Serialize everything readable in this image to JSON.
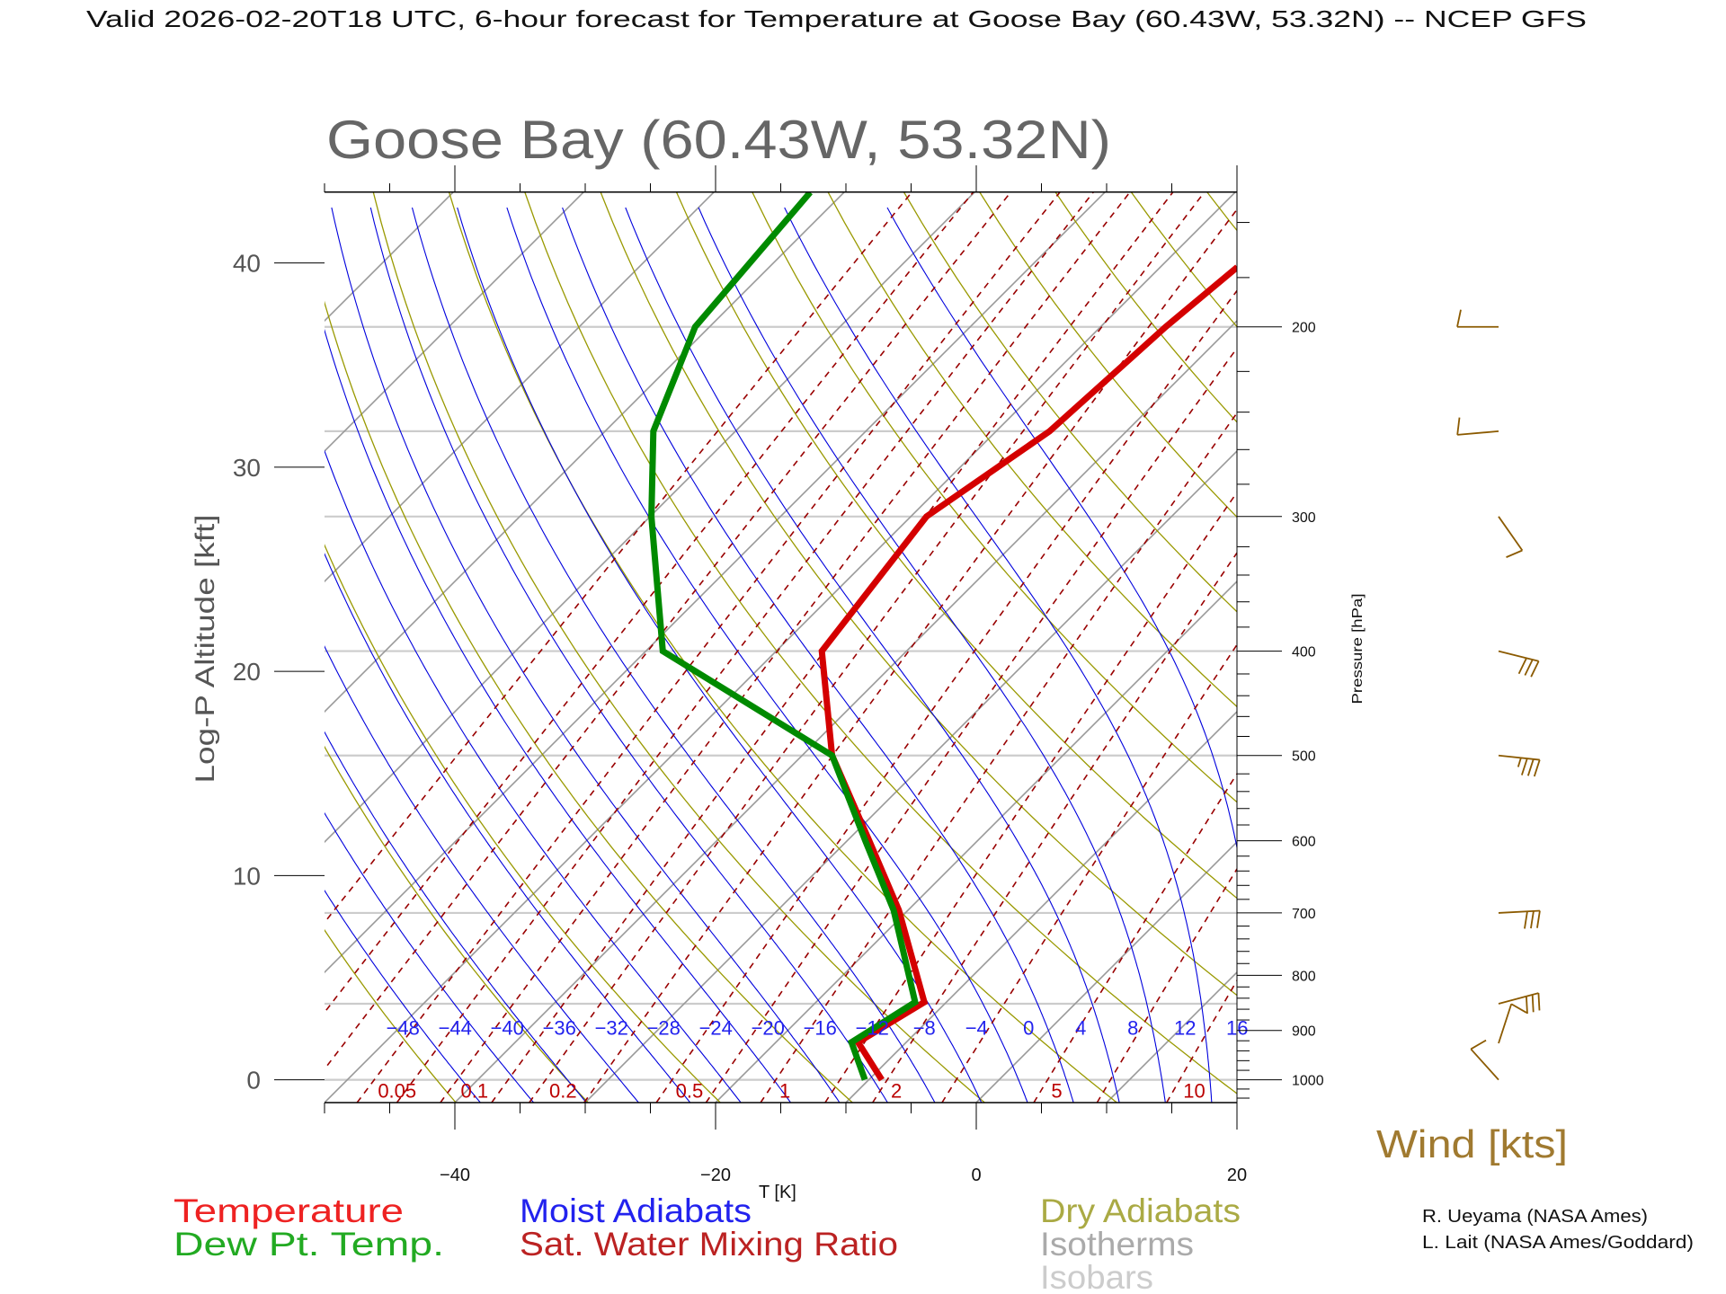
{
  "header": {
    "title": "Valid 2026-02-20T18 UTC, 6-hour forecast for Temperature at Goose Bay (60.43W, 53.32N) -- NCEP GFS"
  },
  "chart_data": {
    "type": "line",
    "subtype": "skew-T log-P",
    "title": "Goose Bay (60.43W, 53.32N)",
    "xlabel": "T [K]",
    "ylabel_left": "Log-P Altitude [kft]",
    "ylabel_right": "Pressure [hPa]",
    "xlim": [
      -50,
      20
    ],
    "pressure_range": [
      1050,
      150
    ],
    "x_ticks": [
      {
        "value": -40,
        "label": "−40"
      },
      {
        "value": -20,
        "label": "−20"
      },
      {
        "value": 0,
        "label": "0"
      },
      {
        "value": 20,
        "label": "20"
      }
    ],
    "altitude_ticks": [
      {
        "value": 0,
        "label": "0"
      },
      {
        "value": 10,
        "label": "10"
      },
      {
        "value": 20,
        "label": "20"
      },
      {
        "value": 30,
        "label": "30"
      },
      {
        "value": 40,
        "label": "40"
      }
    ],
    "pressure_ticks": [
      {
        "value": 1000,
        "label": "1000"
      },
      {
        "value": 900,
        "label": "900"
      },
      {
        "value": 800,
        "label": "800"
      },
      {
        "value": 700,
        "label": "700"
      },
      {
        "value": 600,
        "label": "600"
      },
      {
        "value": 500,
        "label": "500"
      },
      {
        "value": 400,
        "label": "400"
      },
      {
        "value": 300,
        "label": "300"
      },
      {
        "value": 200,
        "label": "200"
      }
    ],
    "isobars": [
      1000,
      850,
      700,
      500,
      400,
      300,
      250,
      200
    ],
    "moist_adiabats": [
      {
        "t900": -48,
        "label": "−48"
      },
      {
        "t900": -44,
        "label": "−44"
      },
      {
        "t900": -40,
        "label": "−40"
      },
      {
        "t900": -36,
        "label": "−36"
      },
      {
        "t900": -32,
        "label": "−32"
      },
      {
        "t900": -28,
        "label": "−28"
      },
      {
        "t900": -24,
        "label": "−24"
      },
      {
        "t900": -20,
        "label": "−20"
      },
      {
        "t900": -16,
        "label": "−16"
      },
      {
        "t900": -12,
        "label": "−12"
      },
      {
        "t900": -8,
        "label": "−8"
      },
      {
        "t900": -4,
        "label": "−4"
      },
      {
        "t900": 0,
        "label": "0"
      },
      {
        "t900": 4,
        "label": "4"
      },
      {
        "t900": 8,
        "label": "8"
      },
      {
        "t900": 12,
        "label": "12"
      },
      {
        "t900": 16,
        "label": "16"
      }
    ],
    "mixing_ratios": [
      {
        "w": 0.01
      },
      {
        "w": 0.02
      },
      {
        "w": 0.03
      },
      {
        "w": 0.05,
        "label": "0.05"
      },
      {
        "w": 0.07
      },
      {
        "w": 0.1,
        "label": "0.1"
      },
      {
        "w": 0.15
      },
      {
        "w": 0.2,
        "label": "0.2"
      },
      {
        "w": 0.3
      },
      {
        "w": 0.5,
        "label": "0.5"
      },
      {
        "w": 0.7
      },
      {
        "w": 1,
        "label": "1"
      },
      {
        "w": 1.5
      },
      {
        "w": 2,
        "label": "2"
      },
      {
        "w": 3
      },
      {
        "w": 5,
        "label": "5"
      },
      {
        "w": 7
      },
      {
        "w": 10,
        "label": "10"
      },
      {
        "w": 15
      },
      {
        "w": 20
      }
    ],
    "series": [
      {
        "name": "Temperature",
        "color": "#d40000",
        "points": [
          [
            1000,
            -9.0
          ],
          [
            923,
            -13.7
          ],
          [
            847,
            -11.7
          ],
          [
            696,
            -20.7
          ],
          [
            600,
            -28.3
          ],
          [
            500,
            -37.7
          ],
          [
            400,
            -46.5
          ],
          [
            300,
            -48.8
          ],
          [
            250,
            -45.9
          ],
          [
            200,
            -45.0
          ],
          [
            176,
            -44.1
          ]
        ]
      },
      {
        "name": "Dew Pt. Temp.",
        "color": "#008a00",
        "points": [
          [
            1000,
            -10.3
          ],
          [
            923,
            -14.2
          ],
          [
            847,
            -12.4
          ],
          [
            696,
            -21.1
          ],
          [
            600,
            -28.6
          ],
          [
            500,
            -37.7
          ],
          [
            400,
            -58.7
          ],
          [
            300,
            -69.9
          ],
          [
            250,
            -76.3
          ],
          [
            200,
            -81.1
          ],
          [
            150,
            -82.6
          ]
        ]
      }
    ],
    "wind": {
      "label": "Wind [kts]",
      "color": "#8b5a00",
      "barbs": [
        {
          "p": 200,
          "dir": 270,
          "speed": 10
        },
        {
          "p": 250,
          "dir": 265,
          "speed": 10
        },
        {
          "p": 300,
          "dir": 145,
          "speed": 10
        },
        {
          "p": 400,
          "dir": 104,
          "speed": 30
        },
        {
          "p": 500,
          "dir": 96,
          "speed": 35
        },
        {
          "p": 700,
          "dir": 87,
          "speed": 30
        },
        {
          "p": 850,
          "dir": 75,
          "speed": 30
        },
        {
          "p": 925,
          "dir": 18,
          "speed": 10
        },
        {
          "p": 1000,
          "dir": 318,
          "speed": 10
        }
      ]
    },
    "legend": {
      "temperature": {
        "label": "Temperature",
        "color": "#ee2222"
      },
      "dewpoint": {
        "label": "Dew Pt. Temp.",
        "color": "#22aa22"
      },
      "moist": {
        "label": "Moist Adiabats",
        "color": "#2222ee"
      },
      "mixing": {
        "label": "Sat. Water Mixing Ratio",
        "color": "#bb2222"
      },
      "dry": {
        "label": "Dry Adiabats",
        "color": "#aaaa44"
      },
      "isotherms": {
        "label": "Isotherms",
        "color": "#aaaaaa"
      },
      "isobars": {
        "label": "Isobars",
        "color": "#cccccc"
      }
    },
    "colors": {
      "isotherm": "#999999",
      "isobar": "#cccccc",
      "dry_adiabat": "#999900",
      "moist_adiabat": "#0000dd",
      "mixing_ratio": "#990000",
      "mixing_label": "#bb0000",
      "moist_label": "#2222ee"
    }
  },
  "credits": {
    "line1": "R. Ueyama (NASA Ames)",
    "line2": "L. Lait (NASA Ames/Goddard)"
  }
}
